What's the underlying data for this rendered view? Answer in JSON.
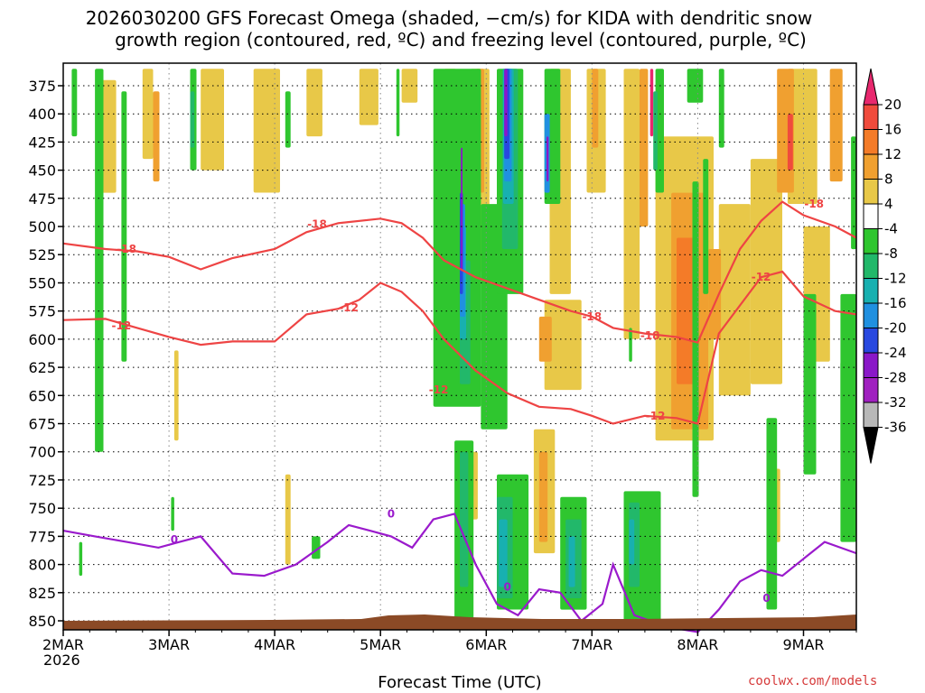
{
  "chart_data": {
    "type": "heatmap",
    "title_line1": "2026030200 GFS Forecast Omega (shaded, −cm/s) for KIDA with dendritic snow",
    "title_line2": "growth region (contoured, red, ºC) and freezing level (contoured, purple, ºC)",
    "xlabel": "Forecast Time (UTC)",
    "credit": "coolwx.com/models",
    "x_ticks": [
      "2MAR",
      "3MAR",
      "4MAR",
      "5MAR",
      "6MAR",
      "7MAR",
      "8MAR",
      "9MAR"
    ],
    "x_year": "2026",
    "x_range_days": [
      0,
      7.5
    ],
    "y_ticks": [
      "375",
      "400",
      "425",
      "450",
      "475",
      "500",
      "525",
      "550",
      "575",
      "600",
      "625",
      "650",
      "675",
      "700",
      "725",
      "750",
      "775",
      "800",
      "825",
      "850"
    ],
    "y_range_hpa": [
      355,
      858
    ],
    "colorbar": {
      "labels": [
        "20",
        "16",
        "12",
        "8",
        "4",
        "-4",
        "-8",
        "-12",
        "-16",
        "-20",
        "-24",
        "-28",
        "-32",
        "-36"
      ],
      "colors": [
        "#e8286e",
        "#f04b3c",
        "#f47b28",
        "#f0a030",
        "#e8c848",
        "#ffffff",
        "#2fc62f",
        "#22b86a",
        "#18b0b0",
        "#2090e0",
        "#2848e0",
        "#8a18c8",
        "#a020c0",
        "#b8b8b8",
        "#000000"
      ]
    },
    "contour_labels": {
      "m18": "-18",
      "m12": "-12",
      "zero": "0"
    },
    "contours": {
      "m18": [
        [
          0,
          515
        ],
        [
          0.4,
          520
        ],
        [
          0.7,
          522
        ],
        [
          1.0,
          527
        ],
        [
          1.3,
          538
        ],
        [
          1.6,
          528
        ],
        [
          2.0,
          520
        ],
        [
          2.3,
          505
        ],
        [
          2.6,
          497
        ],
        [
          3.0,
          493
        ],
        [
          3.2,
          497
        ],
        [
          3.4,
          510
        ],
        [
          3.6,
          530
        ],
        [
          3.9,
          545
        ],
        [
          4.2,
          555
        ],
        [
          4.5,
          565
        ],
        [
          4.8,
          575
        ],
        [
          5.0,
          580
        ],
        [
          5.2,
          590
        ],
        [
          5.5,
          595
        ],
        [
          5.8,
          598
        ],
        [
          6.0,
          603
        ],
        [
          6.2,
          560
        ],
        [
          6.4,
          520
        ],
        [
          6.6,
          495
        ],
        [
          6.8,
          478
        ],
        [
          7.0,
          490
        ],
        [
          7.3,
          500
        ],
        [
          7.5,
          510
        ]
      ],
      "m12": [
        [
          0,
          583
        ],
        [
          0.4,
          582
        ],
        [
          0.7,
          590
        ],
        [
          1.0,
          598
        ],
        [
          1.3,
          605
        ],
        [
          1.6,
          602
        ],
        [
          2.0,
          602
        ],
        [
          2.3,
          578
        ],
        [
          2.6,
          573
        ],
        [
          2.8,
          565
        ],
        [
          3.0,
          550
        ],
        [
          3.2,
          558
        ],
        [
          3.4,
          575
        ],
        [
          3.6,
          600
        ],
        [
          3.9,
          628
        ],
        [
          4.2,
          648
        ],
        [
          4.5,
          660
        ],
        [
          4.8,
          662
        ],
        [
          5.0,
          668
        ],
        [
          5.2,
          675
        ],
        [
          5.5,
          668
        ],
        [
          5.8,
          670
        ],
        [
          6.0,
          675
        ],
        [
          6.2,
          595
        ],
        [
          6.4,
          570
        ],
        [
          6.6,
          545
        ],
        [
          6.8,
          540
        ],
        [
          7.0,
          562
        ],
        [
          7.3,
          575
        ],
        [
          7.5,
          578
        ]
      ],
      "zero": [
        [
          0,
          770
        ],
        [
          0.3,
          775
        ],
        [
          0.6,
          780
        ],
        [
          0.9,
          785
        ],
        [
          1.1,
          780
        ],
        [
          1.3,
          775
        ],
        [
          1.6,
          808
        ],
        [
          1.9,
          810
        ],
        [
          2.2,
          800
        ],
        [
          2.5,
          780
        ],
        [
          2.7,
          765
        ],
        [
          2.9,
          770
        ],
        [
          3.1,
          775
        ],
        [
          3.3,
          785
        ],
        [
          3.5,
          760
        ],
        [
          3.7,
          755
        ],
        [
          3.9,
          800
        ],
        [
          4.1,
          835
        ],
        [
          4.3,
          845
        ],
        [
          4.5,
          822
        ],
        [
          4.7,
          825
        ],
        [
          4.9,
          850
        ],
        [
          5.1,
          835
        ],
        [
          5.2,
          800
        ],
        [
          5.4,
          845
        ],
        [
          5.7,
          855
        ],
        [
          6.0,
          860
        ],
        [
          6.2,
          840
        ],
        [
          6.4,
          815
        ],
        [
          6.6,
          805
        ],
        [
          6.8,
          810
        ],
        [
          7.0,
          795
        ],
        [
          7.2,
          780
        ],
        [
          7.5,
          790
        ]
      ]
    }
  }
}
